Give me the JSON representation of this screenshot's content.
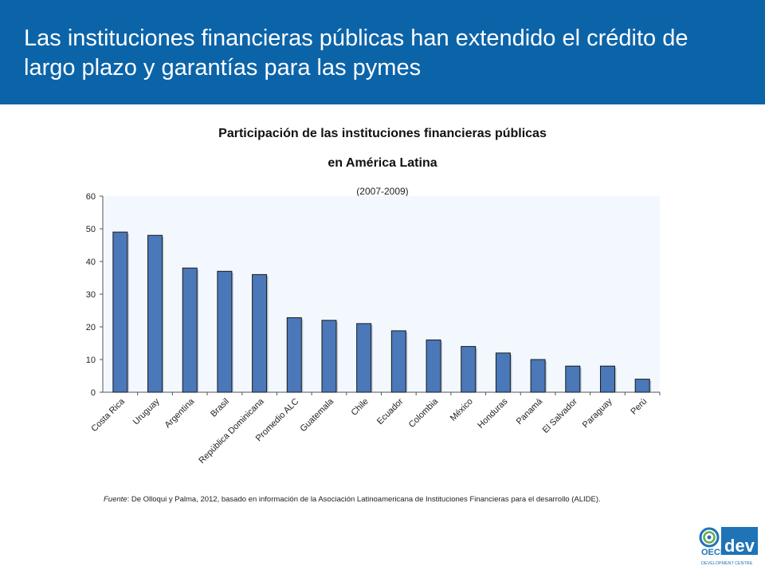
{
  "header": {
    "title": "Las instituciones financieras públicas han extendido el crédito de largo plazo y garantías para las pymes"
  },
  "chart_data": {
    "type": "bar",
    "title_line1": "Participación de las instituciones financieras públicas",
    "title_line2": "en América Latina",
    "subtitle": "(2007-2009)",
    "categories": [
      "Costa Rica",
      "Uruguay",
      "Argentina",
      "Brasil",
      "República Dominicana",
      "Promedio ALC",
      "Guatemala",
      "Chile",
      "Ecuador",
      "Colombia",
      "México",
      "Honduras",
      "Panamá",
      "El Salvador",
      "Paraguay",
      "Perú"
    ],
    "values": [
      49,
      48,
      38,
      37,
      36,
      22.8,
      22,
      21,
      18.8,
      16,
      14,
      12,
      10,
      8,
      8,
      4
    ],
    "yticks": [
      0,
      10,
      20,
      30,
      40,
      50,
      60
    ],
    "ylim": [
      0,
      60
    ],
    "grid": false,
    "bar_color": "#4a78b9",
    "plot_bg": "#f3f8fe"
  },
  "source": {
    "label": "Fuente",
    "text": ": De Olloqui y Palma, 2012, basado en información de la  Asociación Latinoamericana de Instituciones Financieras para el desarrollo (ALIDE)."
  },
  "logo": {
    "text_main": "OECD",
    "text_dev": "dev",
    "text_sub": "DEVELOPMENT  CENTRE"
  },
  "colors": {
    "header_bg": "#0c64a8",
    "logo_blue": "#1f73b7"
  }
}
